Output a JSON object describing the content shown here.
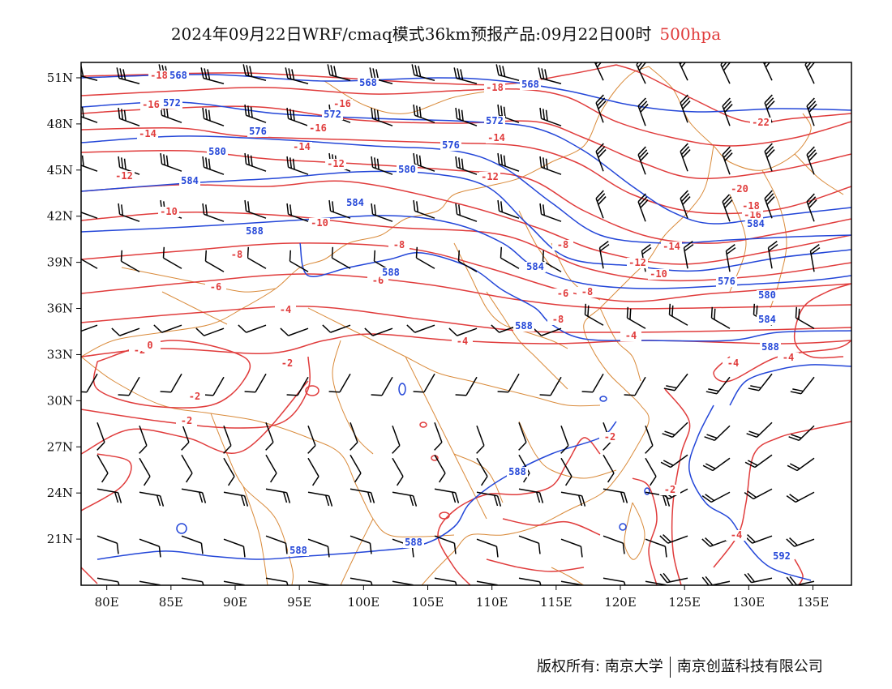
{
  "title": {
    "main": "2024年09月22日WRF/cmaq模式36km预报产品:09月22日00时",
    "level": "500hpa"
  },
  "colors": {
    "temperature_contour": "#e03c3c",
    "height_contour": "#2346d8",
    "border": "#d98a3a",
    "wind_barb": "#000000"
  },
  "axes": {
    "lon_labels": [
      "80E",
      "85E",
      "90E",
      "95E",
      "100E",
      "105E",
      "110E",
      "115E",
      "120E",
      "125E",
      "130E",
      "135E"
    ],
    "lat_labels": [
      "51N",
      "48N",
      "45N",
      "42N",
      "39N",
      "36N",
      "33N",
      "30N",
      "27N",
      "24N",
      "21N"
    ]
  },
  "map": {
    "lon_range": [
      78,
      138
    ],
    "lat_range": [
      18,
      52
    ]
  },
  "temperature_labels": [
    "-18",
    "-16",
    "-16",
    "-14",
    "-14",
    "-12",
    "-12",
    "-10",
    "-10",
    "-8",
    "-8",
    "-6",
    "-6",
    "-4",
    "-4",
    "-2",
    "-2",
    "-2",
    "0",
    "-2",
    "-2",
    "-2",
    "-4",
    "-4",
    "-6",
    "-8",
    "-10",
    "-12",
    "-14",
    "-16",
    "-18",
    "-20",
    "-22",
    "-18",
    "-16",
    "-14",
    "-12",
    "-8",
    "-8",
    "-4",
    "-4"
  ],
  "height_labels": [
    "568",
    "572",
    "576",
    "580",
    "584",
    "588",
    "568",
    "572",
    "576",
    "580",
    "584",
    "588",
    "568",
    "572",
    "576",
    "580",
    "584",
    "588",
    "584",
    "588",
    "588",
    "588",
    "588",
    "592",
    "584"
  ],
  "footer": {
    "owner": "版权所有: 南京大学",
    "company": "南京创蓝科技有限公司"
  }
}
